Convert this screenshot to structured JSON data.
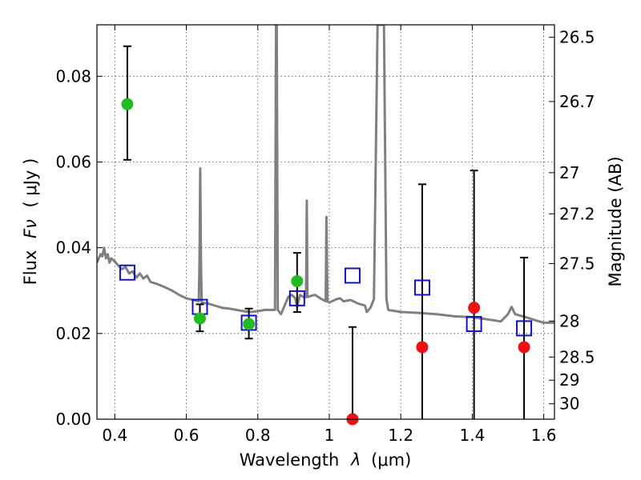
{
  "chart_data": {
    "type": "scatter",
    "title": "",
    "xlabel_text": "Wavelength",
    "xlabel_symbol": "λ",
    "xlabel_unit": "(μm)",
    "ylabel_text": "Flux",
    "ylabel_symbol": "Fν",
    "ylabel_unit": "( μJy )",
    "ylabel_right": "Magnitude (AB)",
    "xlim": [
      0.35,
      1.63
    ],
    "ylim": [
      0.0,
      0.092
    ],
    "grid": true,
    "x_ticks": [
      0.4,
      0.6,
      0.8,
      1.0,
      1.2,
      1.4,
      1.6
    ],
    "x_tick_labels": [
      "0.4",
      "0.6",
      "0.8",
      "1",
      "1.2",
      "1.4",
      "1.6"
    ],
    "y_ticks": [
      0.0,
      0.02,
      0.04,
      0.06,
      0.08
    ],
    "y_tick_labels": [
      "0.00",
      "0.02",
      "0.04",
      "0.06",
      "0.08"
    ],
    "mag_ticks": [
      {
        "flux": 0.0891,
        "label": "26.5"
      },
      {
        "flux": 0.0741,
        "label": "26.7"
      },
      {
        "flux": 0.0575,
        "label": "27"
      },
      {
        "flux": 0.0479,
        "label": "27.2"
      },
      {
        "flux": 0.0363,
        "label": "27.5"
      },
      {
        "flux": 0.0229,
        "label": "28"
      },
      {
        "flux": 0.0145,
        "label": "28.5"
      },
      {
        "flux": 0.0091,
        "label": "29"
      },
      {
        "flux": 0.0036,
        "label": "30"
      }
    ],
    "colors": {
      "sed": "#808080",
      "detection": "#22bb22",
      "nondetection": "#ee1111",
      "model": "#1111cc",
      "errorbar": "#000000"
    },
    "sed_model": [
      [
        0.35,
        0.0365
      ],
      [
        0.36,
        0.0385
      ],
      [
        0.365,
        0.038
      ],
      [
        0.37,
        0.04
      ],
      [
        0.375,
        0.0375
      ],
      [
        0.38,
        0.0385
      ],
      [
        0.385,
        0.0365
      ],
      [
        0.39,
        0.0375
      ],
      [
        0.4,
        0.0368
      ],
      [
        0.41,
        0.0358
      ],
      [
        0.42,
        0.035
      ],
      [
        0.43,
        0.0355
      ],
      [
        0.44,
        0.034
      ],
      [
        0.45,
        0.0345
      ],
      [
        0.46,
        0.033
      ],
      [
        0.47,
        0.034
      ],
      [
        0.48,
        0.0328
      ],
      [
        0.49,
        0.0335
      ],
      [
        0.5,
        0.032
      ],
      [
        0.52,
        0.0315
      ],
      [
        0.54,
        0.0308
      ],
      [
        0.56,
        0.03
      ],
      [
        0.58,
        0.029
      ],
      [
        0.6,
        0.0282
      ],
      [
        0.62,
        0.0278
      ],
      [
        0.635,
        0.0275
      ],
      [
        0.637,
        0.037
      ],
      [
        0.639,
        0.0585
      ],
      [
        0.641,
        0.037
      ],
      [
        0.643,
        0.0272
      ],
      [
        0.66,
        0.027
      ],
      [
        0.68,
        0.0265
      ],
      [
        0.7,
        0.026
      ],
      [
        0.72,
        0.0258
      ],
      [
        0.74,
        0.0255
      ],
      [
        0.76,
        0.0252
      ],
      [
        0.78,
        0.025
      ],
      [
        0.8,
        0.0252
      ],
      [
        0.82,
        0.0255
      ],
      [
        0.84,
        0.0255
      ],
      [
        0.848,
        0.0255
      ],
      [
        0.851,
        0.092
      ],
      [
        0.853,
        0.092
      ],
      [
        0.856,
        0.0255
      ],
      [
        0.865,
        0.0245
      ],
      [
        0.875,
        0.0265
      ],
      [
        0.885,
        0.0285
      ],
      [
        0.895,
        0.029
      ],
      [
        0.905,
        0.0282
      ],
      [
        0.91,
        0.0262
      ],
      [
        0.918,
        0.029
      ],
      [
        0.928,
        0.0285
      ],
      [
        0.935,
        0.0285
      ],
      [
        0.937,
        0.051
      ],
      [
        0.939,
        0.0285
      ],
      [
        0.95,
        0.0288
      ],
      [
        0.96,
        0.029
      ],
      [
        0.975,
        0.0282
      ],
      [
        0.99,
        0.0275
      ],
      [
        0.992,
        0.0472
      ],
      [
        0.995,
        0.0275
      ],
      [
        1.0,
        0.0272
      ],
      [
        1.02,
        0.028
      ],
      [
        1.03,
        0.0282
      ],
      [
        1.04,
        0.0275
      ],
      [
        1.06,
        0.0278
      ],
      [
        1.08,
        0.027
      ],
      [
        1.1,
        0.0265
      ],
      [
        1.105,
        0.025
      ],
      [
        1.115,
        0.026
      ],
      [
        1.125,
        0.028
      ],
      [
        1.135,
        0.092
      ],
      [
        1.153,
        0.092
      ],
      [
        1.16,
        0.028
      ],
      [
        1.165,
        0.0255
      ],
      [
        1.2,
        0.025
      ],
      [
        1.25,
        0.0248
      ],
      [
        1.3,
        0.0245
      ],
      [
        1.35,
        0.024
      ],
      [
        1.4,
        0.0238
      ],
      [
        1.45,
        0.0232
      ],
      [
        1.48,
        0.0228
      ],
      [
        1.5,
        0.0245
      ],
      [
        1.51,
        0.0262
      ],
      [
        1.52,
        0.0245
      ],
      [
        1.55,
        0.0238
      ],
      [
        1.58,
        0.023
      ],
      [
        1.6,
        0.0225
      ],
      [
        1.63,
        0.0225
      ]
    ],
    "detections": [
      {
        "x": 0.435,
        "y": 0.0735,
        "ylo": 0.0605,
        "yhi": 0.087
      },
      {
        "x": 0.638,
        "y": 0.0235,
        "ylo": 0.0205,
        "yhi": 0.0268
      },
      {
        "x": 0.775,
        "y": 0.0222,
        "ylo": 0.0188,
        "yhi": 0.0258
      },
      {
        "x": 0.91,
        "y": 0.0322,
        "ylo": 0.025,
        "yhi": 0.0388
      }
    ],
    "nondetections": [
      {
        "x": 1.065,
        "y": 0.0,
        "ylo": 0.0,
        "yhi": 0.0215
      },
      {
        "x": 1.26,
        "y": 0.0168,
        "ylo": 0.0,
        "yhi": 0.0548
      },
      {
        "x": 1.405,
        "y": 0.026,
        "ylo": 0.0,
        "yhi": 0.058
      },
      {
        "x": 1.545,
        "y": 0.0168,
        "ylo": 0.0,
        "yhi": 0.0377
      }
    ],
    "model_photometry": [
      {
        "x": 0.435,
        "y": 0.0342
      },
      {
        "x": 0.638,
        "y": 0.0262
      },
      {
        "x": 0.775,
        "y": 0.0225
      },
      {
        "x": 0.91,
        "y": 0.0282
      },
      {
        "x": 1.065,
        "y": 0.0335
      },
      {
        "x": 1.26,
        "y": 0.0307
      },
      {
        "x": 1.405,
        "y": 0.0222
      },
      {
        "x": 1.545,
        "y": 0.0212
      }
    ]
  }
}
